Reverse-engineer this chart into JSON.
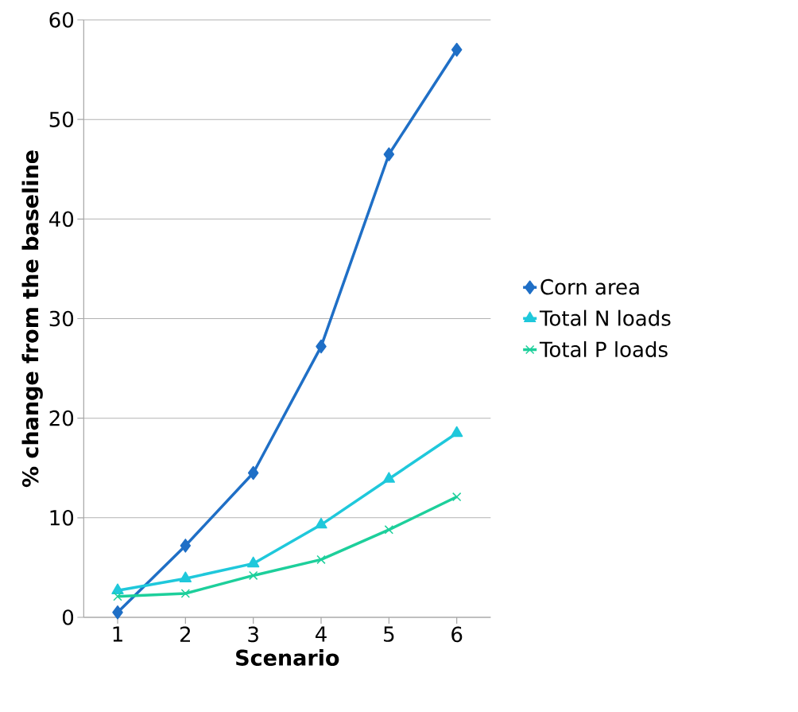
{
  "chart_data": {
    "type": "line",
    "xlabel": "Scenario",
    "ylabel": "% change from the baseline",
    "categories": [
      "1",
      "2",
      "3",
      "4",
      "5",
      "6"
    ],
    "series": [
      {
        "name": "Corn area",
        "color": "#1f6fc6",
        "marker": "diamond",
        "values": [
          0.5,
          7.2,
          14.5,
          27.2,
          46.5,
          57.0
        ]
      },
      {
        "name": "Total N loads",
        "color": "#1fc8db",
        "marker": "triangle",
        "values": [
          2.7,
          3.9,
          5.4,
          9.3,
          13.9,
          18.5
        ]
      },
      {
        "name": "Total P loads",
        "color": "#1dcf9b",
        "marker": "cross",
        "values": [
          2.1,
          2.4,
          4.2,
          5.8,
          8.8,
          12.1
        ]
      }
    ],
    "ylim": [
      0,
      60
    ],
    "yticks": [
      0,
      10,
      20,
      30,
      40,
      50,
      60
    ],
    "grid": "y",
    "legend": "right",
    "line_style": "solid"
  }
}
